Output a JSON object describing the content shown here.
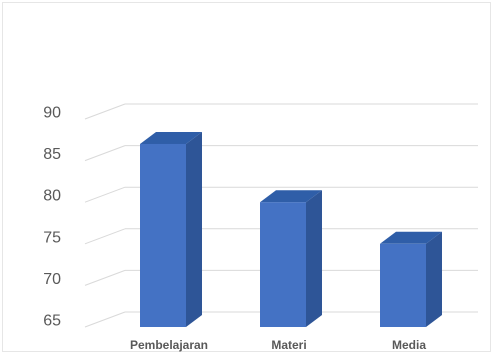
{
  "chart_data": {
    "type": "bar",
    "style": "3d-column",
    "categories": [
      "Pembelajaran",
      "Materi",
      "Media"
    ],
    "values": [
      87,
      80,
      75
    ],
    "ylim": [
      65,
      90
    ],
    "yticks": [
      65,
      70,
      75,
      80,
      85,
      90
    ],
    "grid": true,
    "legend": "none",
    "colors": {
      "bar_front": "#4472c4",
      "bar_side": "#2e5597",
      "bar_top": "#2f5ea8",
      "grid": "#d9d9d9",
      "text": "#595959"
    }
  }
}
